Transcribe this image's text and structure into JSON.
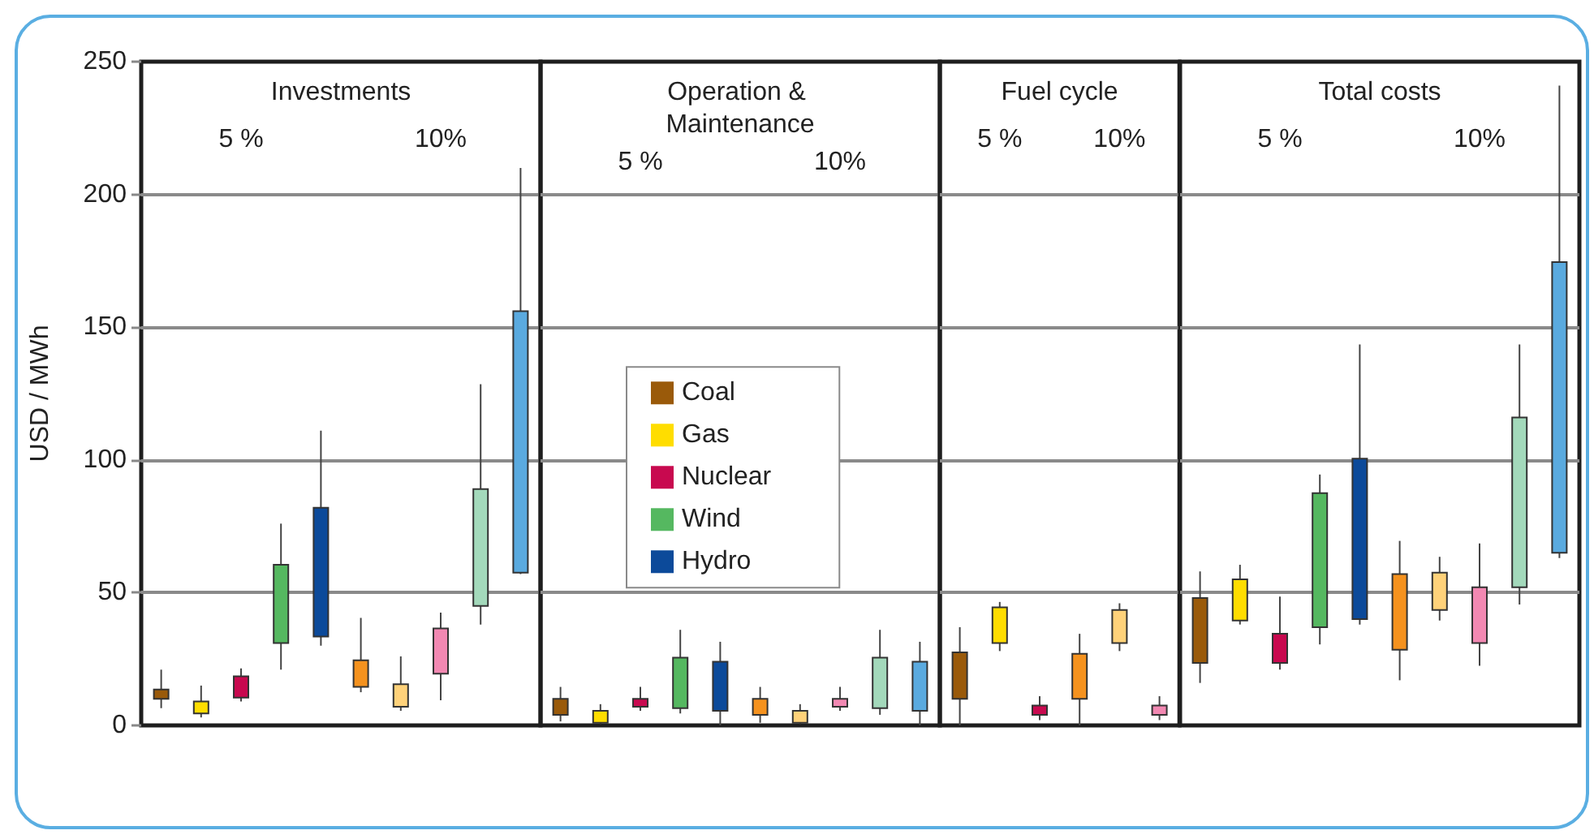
{
  "chart_data": [
    {
      "type": "bar",
      "title": "Investments",
      "ylabel": "USD / MWh",
      "categories": [
        "5 %",
        "10%"
      ],
      "ylim": [
        0,
        250
      ],
      "yticks": [
        0,
        50,
        100,
        150,
        200,
        250
      ],
      "grid": "y",
      "series": [
        {
          "colors": [
            "#9a5a0a",
            "#f5921e"
          ],
          "base": [
            10,
            14.5
          ],
          "values": [
            3.5,
            10
          ],
          "errors": [
            [
              6.5,
              21
            ],
            [
              12.5,
              40.5
            ]
          ]
        },
        {
          "colors": [
            "#ffdd00",
            "#ffd27a"
          ],
          "base": [
            4.5,
            7
          ],
          "values": [
            4.5,
            8.5
          ],
          "errors": [
            [
              3,
              15
            ],
            [
              5.5,
              26
            ]
          ]
        },
        {
          "colors": [
            "#c8094f",
            "#f288b2"
          ],
          "base": [
            10.5,
            19.5
          ],
          "values": [
            8,
            17
          ],
          "errors": [
            [
              9,
              21.5
            ],
            [
              9.5,
              42.5
            ]
          ]
        },
        {
          "colors": [
            "#55b860",
            "#a3d9bb"
          ],
          "base": [
            31,
            45
          ],
          "values": [
            29.5,
            44
          ],
          "errors": [
            [
              21,
              76
            ],
            [
              38,
              128.5
            ]
          ]
        },
        {
          "colors": [
            "#0c4a9a",
            "#5aaadf"
          ],
          "base": [
            33.5,
            57.5
          ],
          "values": [
            48.5,
            98.5
          ],
          "errors": [
            [
              30,
              111
            ],
            [
              57,
              210
            ]
          ]
        }
      ]
    },
    {
      "type": "bar",
      "title": "Operation & Maintenance",
      "categories": [
        "5 %",
        "10%"
      ],
      "ylim": [
        0,
        250
      ],
      "yticks": [
        0,
        50,
        100,
        150,
        200,
        250
      ],
      "grid": "y",
      "tick_labels": "x",
      "legend": "center",
      "series": [
        {
          "name": "Coal",
          "color": "#9a5a0a",
          "colors": [
            "#9a5a0a",
            "#f5921e"
          ],
          "base": [
            4,
            4
          ],
          "values": [
            6,
            6
          ],
          "errors": [
            [
              1.5,
              14.5
            ],
            [
              1,
              14.5
            ]
          ]
        },
        {
          "name": "Gas",
          "color": "#ffdd00",
          "colors": [
            "#ffdd00",
            "#ffd27a"
          ],
          "base": [
            1,
            1
          ],
          "values": [
            4.5,
            4.5
          ],
          "errors": [
            [
              0.5,
              8
            ],
            [
              0.5,
              8
            ]
          ]
        },
        {
          "name": "Nuclear",
          "color": "#c8094f",
          "colors": [
            "#c8094f",
            "#f288b2"
          ],
          "base": [
            7,
            7
          ],
          "values": [
            3,
            3
          ],
          "errors": [
            [
              5.5,
              14.5
            ],
            [
              5.5,
              14.5
            ]
          ]
        },
        {
          "name": "Wind",
          "color": "#55b860",
          "colors": [
            "#55b860",
            "#a3d9bb"
          ],
          "base": [
            6.5,
            6.5
          ],
          "values": [
            19,
            19
          ],
          "errors": [
            [
              4.5,
              36
            ],
            [
              4,
              36
            ]
          ]
        },
        {
          "name": "Hydro",
          "color": "#0c4a9a",
          "colors": [
            "#0c4a9a",
            "#5aaadf"
          ],
          "base": [
            5.5,
            5.5
          ],
          "values": [
            18.5,
            18.5
          ],
          "errors": [
            [
              0,
              31.5
            ],
            [
              0,
              31.5
            ]
          ]
        }
      ]
    },
    {
      "type": "bar",
      "title": "Fuel cycle",
      "categories": [
        "5 %",
        "10%"
      ],
      "ylim": [
        0,
        250
      ],
      "yticks": [
        0,
        50,
        100,
        150,
        200,
        250
      ],
      "grid": "y",
      "tick_labels": "x",
      "series": [
        {
          "colors": [
            "#9a5a0a",
            "#f5921e"
          ],
          "base": [
            10,
            10
          ],
          "values": [
            17.5,
            17
          ],
          "errors": [
            [
              0,
              37
            ],
            [
              0,
              34.5
            ]
          ]
        },
        {
          "colors": [
            "#ffdd00",
            "#ffd27a"
          ],
          "base": [
            31,
            31
          ],
          "values": [
            13.5,
            12.5
          ],
          "errors": [
            [
              28,
              46.5
            ],
            [
              28,
              46
            ]
          ]
        },
        {
          "colors": [
            "#c8094f",
            "#f288b2"
          ],
          "base": [
            4,
            4
          ],
          "values": [
            3.5,
            3.5
          ],
          "errors": [
            [
              2,
              11
            ],
            [
              2,
              11
            ]
          ]
        }
      ]
    },
    {
      "type": "bar",
      "title": "Total costs",
      "categories": [
        "5 %",
        "10%"
      ],
      "ylim": [
        0,
        250
      ],
      "yticks": [
        0,
        50,
        100,
        150,
        200,
        250
      ],
      "grid": "y",
      "tick_labels": "x",
      "series": [
        {
          "colors": [
            "#9a5a0a",
            "#f5921e"
          ],
          "base": [
            23.5,
            28.5
          ],
          "values": [
            24.5,
            28.5
          ],
          "errors": [
            [
              16,
              58
            ],
            [
              17,
              69.5
            ]
          ]
        },
        {
          "colors": [
            "#ffdd00",
            "#ffd27a"
          ],
          "base": [
            39.5,
            43.5
          ],
          "values": [
            15.5,
            14
          ],
          "errors": [
            [
              38,
              60.5
            ],
            [
              39.5,
              63.5
            ]
          ]
        },
        {
          "colors": [
            "#c8094f",
            "#f288b2"
          ],
          "base": [
            23.5,
            31
          ],
          "values": [
            11,
            21
          ],
          "errors": [
            [
              21,
              48.5
            ],
            [
              22.5,
              68.5
            ]
          ]
        },
        {
          "colors": [
            "#55b860",
            "#a3d9bb"
          ],
          "base": [
            37,
            52
          ],
          "values": [
            50.5,
            64
          ],
          "errors": [
            [
              30.5,
              94.5
            ],
            [
              45.5,
              143.5
            ]
          ]
        },
        {
          "colors": [
            "#0c4a9a",
            "#5aaadf"
          ],
          "base": [
            40,
            65
          ],
          "values": [
            60.5,
            109.5
          ],
          "errors": [
            [
              38,
              143.5
            ],
            [
              63,
              241
            ]
          ]
        }
      ]
    }
  ]
}
